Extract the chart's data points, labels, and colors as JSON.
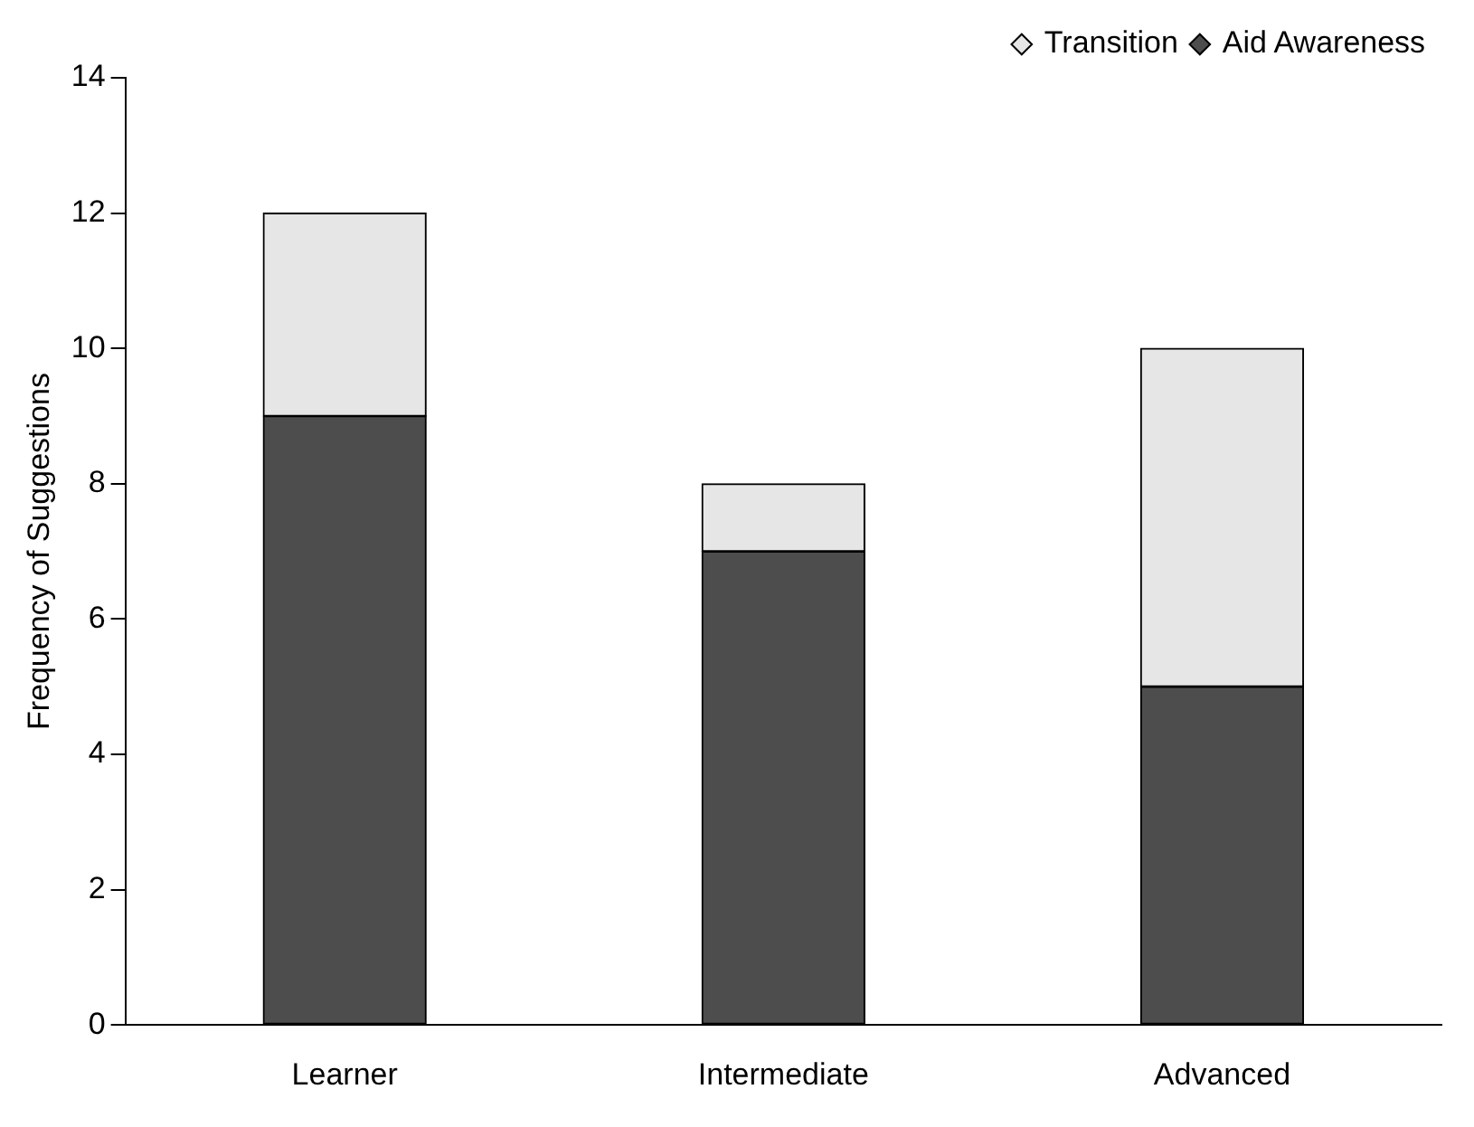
{
  "chart_data": {
    "type": "bar",
    "stacked": true,
    "ylabel": "Frequency of Suggestions",
    "categories": [
      "Learner",
      "Intermediate",
      "Advanced"
    ],
    "series": [
      {
        "name": "Aid Awareness",
        "color": "#4d4d4d",
        "values": [
          9,
          7,
          5
        ]
      },
      {
        "name": "Transition",
        "color": "#e6e6e6",
        "values": [
          3,
          1,
          5
        ]
      }
    ],
    "ylim": [
      0,
      14
    ],
    "yticks": [
      0,
      2,
      4,
      6,
      8,
      10,
      12,
      14
    ],
    "grid": false,
    "legend": "top right"
  }
}
